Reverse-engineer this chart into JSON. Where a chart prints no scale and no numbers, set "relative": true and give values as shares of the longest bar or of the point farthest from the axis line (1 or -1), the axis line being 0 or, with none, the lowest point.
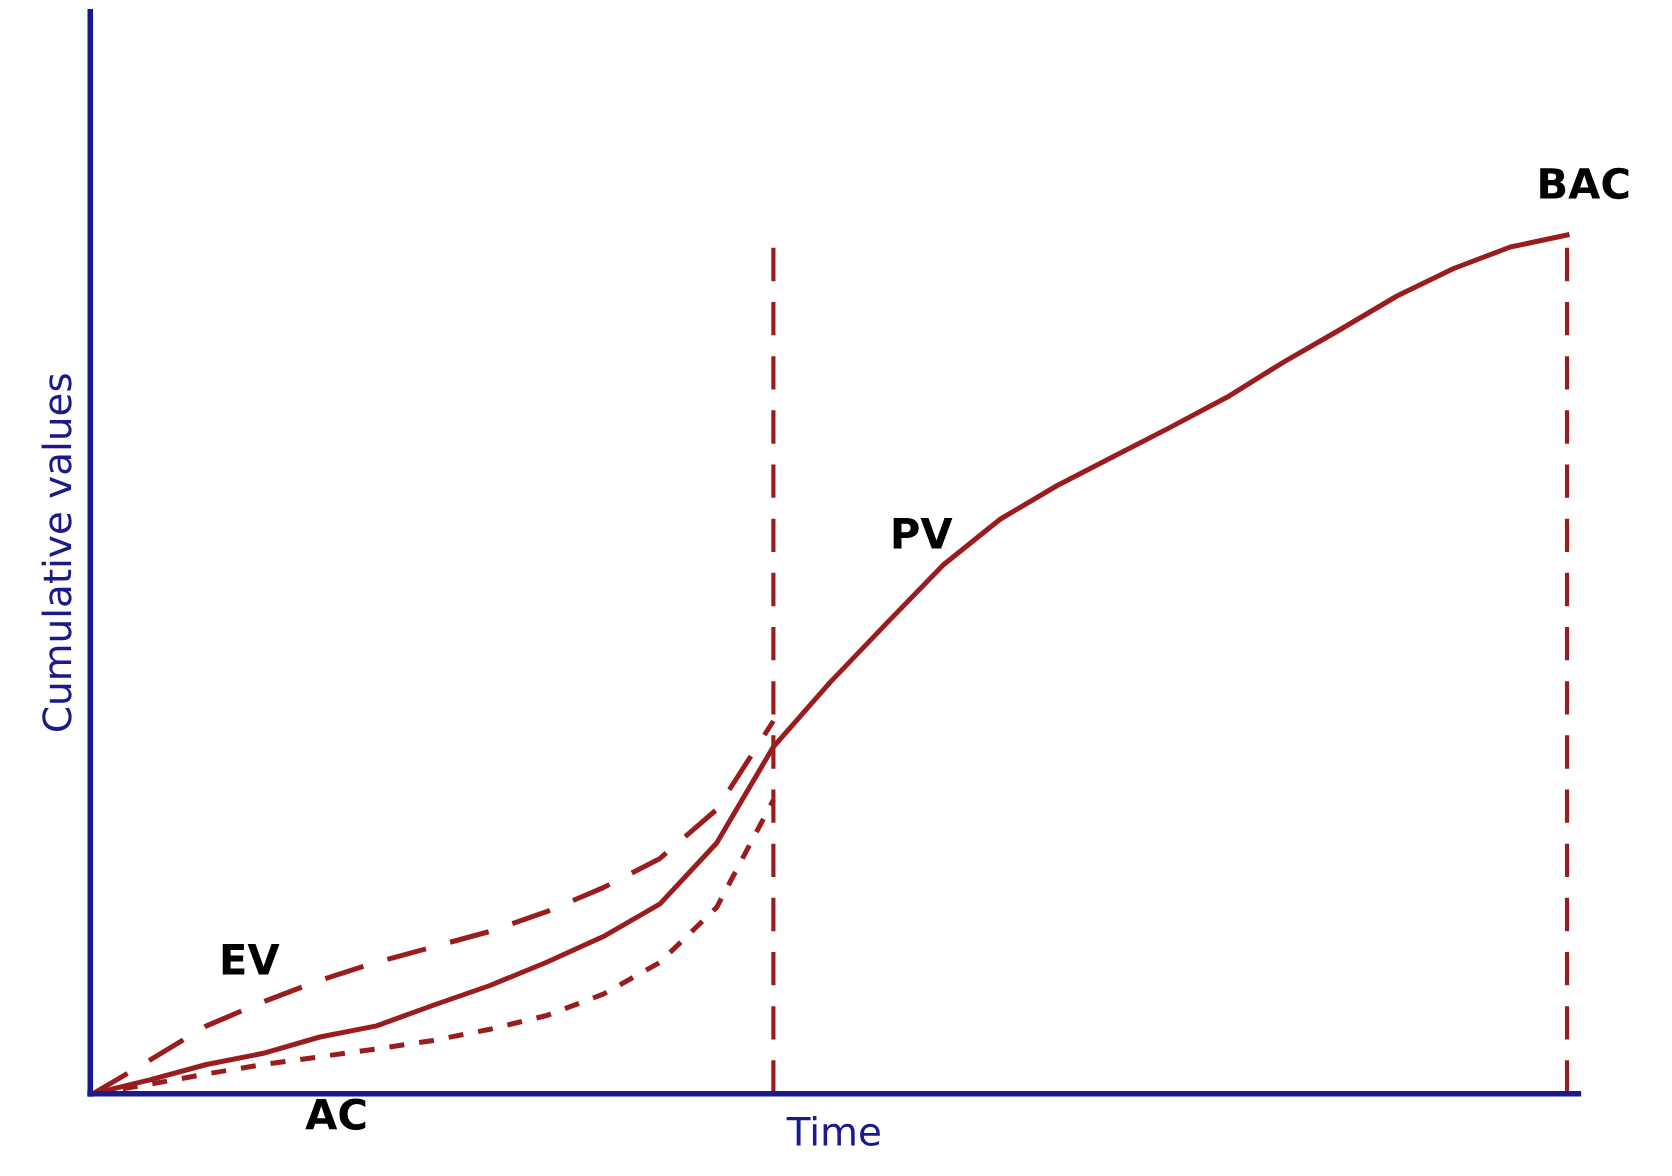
{
  "chart_data": {
    "type": "line",
    "relative": true,
    "xlabel": "Time",
    "ylabel": "Cumulative values",
    "categories": [
      null,
      null,
      null,
      null,
      null,
      null,
      null,
      null,
      null,
      null,
      null,
      null,
      null,
      null,
      null,
      null,
      null,
      null,
      null,
      null,
      null,
      null,
      null,
      null,
      null,
      null,
      null
    ],
    "series": [
      {
        "name": "PV",
        "color": "#9b1c1c",
        "line_style": "solid",
        "values": [
          0,
          0.016,
          0.034,
          0.047,
          0.066,
          0.079,
          0.103,
          0.126,
          0.153,
          0.183,
          0.221,
          0.292,
          0.404,
          0.479,
          0.548,
          0.616,
          0.669,
          0.708,
          0.742,
          0.776,
          0.811,
          0.852,
          0.89,
          0.929,
          0.961,
          0.986,
          1
        ]
      },
      {
        "name": "EV",
        "color": "#9b1c1c",
        "line_style": "dashed",
        "values": [
          0,
          0.039,
          0.079,
          0.107,
          0.132,
          0.153,
          0.171,
          0.189,
          0.212,
          0.24,
          0.274,
          0.331,
          0.434,
          null,
          null,
          null,
          null,
          null,
          null,
          null,
          null,
          null,
          null,
          null,
          null,
          null,
          null
        ]
      },
      {
        "name": "AC",
        "color": "#9b1c1c",
        "line_style": "dotted",
        "values": [
          0,
          0.011,
          0.023,
          0.034,
          0.043,
          0.052,
          0.062,
          0.075,
          0.091,
          0.116,
          0.153,
          0.217,
          0.342,
          null,
          null,
          null,
          null,
          null,
          null,
          null,
          null,
          null,
          null,
          null,
          null,
          null,
          null
        ]
      }
    ],
    "annotations": [
      "BAC"
    ],
    "legend": false,
    "marker": "none"
  }
}
